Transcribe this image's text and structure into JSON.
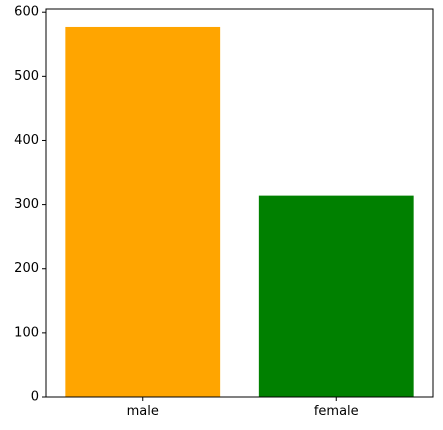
{
  "chart_data": {
    "type": "bar",
    "categories": [
      "male",
      "female"
    ],
    "values": [
      577,
      314
    ],
    "colors": [
      "#ffa500",
      "#008000"
    ],
    "ylim": [
      0,
      605
    ],
    "yticks": [
      0,
      100,
      200,
      300,
      400,
      500,
      600
    ],
    "ytick_labels": [
      "0",
      "100",
      "200",
      "300",
      "400",
      "500",
      "600"
    ],
    "title": "",
    "xlabel": "",
    "ylabel": "",
    "grid": false
  }
}
